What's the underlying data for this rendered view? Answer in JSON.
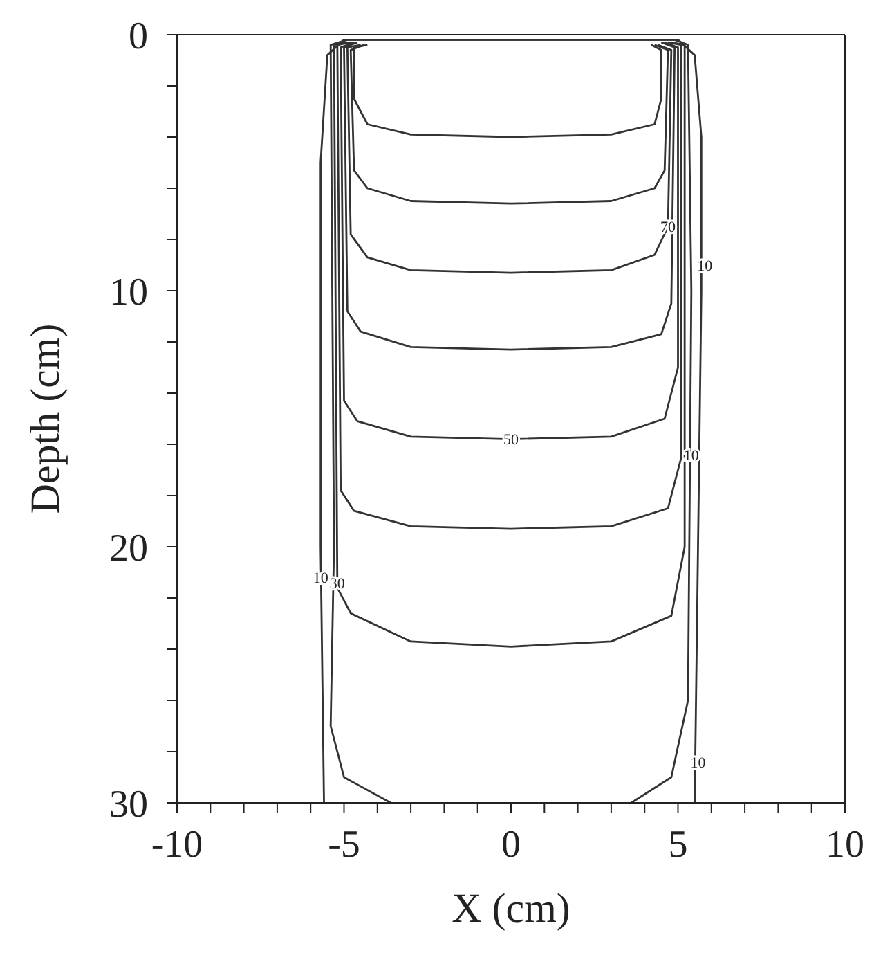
{
  "chart_data": {
    "type": "line",
    "xlabel": "X (cm)",
    "ylabel": "Depth (cm)",
    "xlim": [
      -10,
      10
    ],
    "ylim": [
      30,
      0
    ],
    "xticks": [
      -10,
      {
        "value": -9,
        "label": null
      },
      {
        "value": -8,
        "label": null
      },
      {
        "value": -7,
        "label": null
      },
      {
        "value": -6,
        "label": null
      },
      -5,
      {
        "value": -4,
        "label": null
      },
      {
        "value": -3,
        "label": null
      },
      {
        "value": -2,
        "label": null
      },
      {
        "value": -1,
        "label": null
      },
      0,
      {
        "value": 1,
        "label": null
      },
      {
        "value": 2,
        "label": null
      },
      {
        "value": 3,
        "label": null
      },
      {
        "value": 4,
        "label": null
      },
      5,
      {
        "value": 6,
        "label": null
      },
      {
        "value": 7,
        "label": null
      },
      {
        "value": 8,
        "label": null
      },
      {
        "value": 9,
        "label": null
      },
      10
    ],
    "yticks": [
      0,
      {
        "value": 2,
        "label": null
      },
      {
        "value": 4,
        "label": null
      },
      {
        "value": 6,
        "label": null
      },
      {
        "value": 8,
        "label": null
      },
      10,
      {
        "value": 12,
        "label": null
      },
      {
        "value": 14,
        "label": null
      },
      {
        "value": 16,
        "label": null
      },
      {
        "value": 18,
        "label": null
      },
      20,
      {
        "value": 22,
        "label": null
      },
      {
        "value": 24,
        "label": null
      },
      {
        "value": 26,
        "label": null
      },
      {
        "value": 28,
        "label": null
      },
      30
    ],
    "grid": false,
    "legend": false,
    "marker": "none",
    "line_style": "solid",
    "series": [
      {
        "color": "#333333",
        "x": [
          -4.3,
          -4.7,
          -4.7,
          -4.3,
          -3,
          0,
          3,
          4.3,
          4.5,
          4.5,
          4.2
        ],
        "values": [
          0.4,
          0.5,
          2.5,
          3.5,
          3.9,
          4.0,
          3.9,
          3.5,
          2.5,
          0.6,
          0.4
        ]
      },
      {
        "color": "#333333",
        "x": [
          -4.4,
          -4.8,
          -4.7,
          -4.3,
          -3,
          0,
          3,
          4.3,
          4.6,
          4.7,
          4.3
        ],
        "values": [
          0.4,
          0.6,
          5.3,
          6.0,
          6.5,
          6.6,
          6.5,
          6.0,
          5.3,
          0.6,
          0.4
        ]
      },
      {
        "color": "#333333",
        "x": [
          -4.5,
          -4.9,
          -4.8,
          -4.3,
          -3,
          0,
          3,
          4.3,
          4.7,
          4.8,
          4.4
        ],
        "values": [
          0.4,
          0.5,
          7.8,
          8.7,
          9.2,
          9.3,
          9.2,
          8.6,
          7.5,
          0.6,
          0.4
        ]
      },
      {
        "color": "#333333",
        "x": [
          -4.6,
          -5.0,
          -4.9,
          -4.5,
          -3,
          0,
          3,
          4.5,
          4.8,
          4.9,
          4.5
        ],
        "values": [
          0.3,
          0.5,
          10.8,
          11.6,
          12.2,
          12.3,
          12.2,
          11.7,
          10.5,
          0.5,
          0.3
        ]
      },
      {
        "color": "#333333",
        "x": [
          -4.7,
          -5.1,
          -5.0,
          -4.6,
          -3,
          0,
          3,
          4.6,
          5.0,
          5.0,
          4.6
        ],
        "values": [
          0.3,
          0.5,
          14.3,
          15.1,
          15.7,
          15.8,
          15.7,
          15.0,
          13.0,
          0.5,
          0.3
        ]
      },
      {
        "color": "#333333",
        "x": [
          -4.8,
          -5.2,
          -5.1,
          -4.7,
          -3,
          0,
          3,
          4.7,
          5.1,
          5.1,
          4.7
        ],
        "values": [
          0.3,
          0.4,
          17.8,
          18.6,
          19.2,
          19.3,
          19.2,
          18.5,
          16.5,
          0.4,
          0.3
        ]
      },
      {
        "color": "#333333",
        "x": [
          -4.9,
          -5.3,
          -5.2,
          -4.8,
          -3,
          0,
          3,
          4.8,
          5.2,
          5.2,
          4.8
        ],
        "values": [
          0.3,
          0.4,
          21.6,
          22.6,
          23.7,
          23.9,
          23.7,
          22.7,
          20.0,
          0.4,
          0.3
        ]
      },
      {
        "color": "#333333",
        "x": [
          -3.6,
          -5.0,
          -5.4,
          -5.3,
          -5.4,
          -4.9,
          4.9,
          5.3,
          5.4,
          5.3,
          4.8,
          3.6
        ],
        "values": [
          30,
          29.0,
          27.0,
          20.0,
          0.4,
          0.2,
          0.2,
          0.4,
          10.0,
          26.0,
          29.0,
          30
        ]
      },
      {
        "color": "#333333",
        "x": [
          -5.6,
          -5.7,
          -5.7,
          -5.5,
          -5.0,
          5.0,
          5.5,
          5.7,
          5.7,
          5.6,
          5.5
        ],
        "values": [
          30,
          20,
          5,
          0.8,
          0.2,
          0.2,
          0.8,
          4,
          10,
          20,
          30
        ]
      }
    ],
    "annotations": [
      {
        "text": "10",
        "x": -5.7,
        "y": 21.2
      },
      {
        "text": "30",
        "x": -5.2,
        "y": 21.4
      },
      {
        "text": "50",
        "x": 0,
        "y": 15.8
      },
      {
        "text": "70",
        "x": 4.7,
        "y": 7.5
      },
      {
        "text": "10",
        "x": 5.8,
        "y": 9.0
      },
      {
        "text": "10",
        "x": 5.4,
        "y": 16.4
      },
      {
        "text": "10",
        "x": 5.6,
        "y": 28.4
      }
    ]
  }
}
